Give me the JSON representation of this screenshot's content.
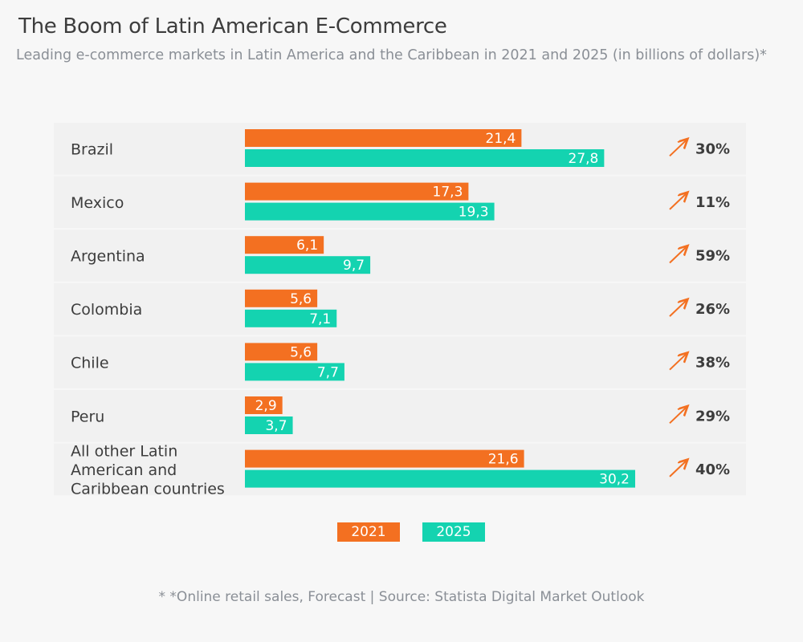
{
  "title": "The Boom of Latin American E-Commerce",
  "subtitle": "Leading e-commerce markets in Latin America and the Caribbean in 2021 and 2025 (in billions of dollars)*",
  "footnote": "* *Online retail sales, Forecast | Source: Statista Digital Market Outlook",
  "colors": {
    "y2021": "#f37021",
    "y2025": "#14d3b0",
    "arrow": "#f37021"
  },
  "chart_data": {
    "type": "bar",
    "orientation": "horizontal",
    "categories": [
      "Brazil",
      "Mexico",
      "Argentina",
      "Colombia",
      "Chile",
      "Peru",
      "All other Latin American and Caribbean countries"
    ],
    "category_display_lines": [
      [
        "Brazil"
      ],
      [
        "Mexico"
      ],
      [
        "Argentina"
      ],
      [
        "Colombia"
      ],
      [
        "Chile"
      ],
      [
        "Peru"
      ],
      [
        "All other Latin",
        "American and",
        "Caribbean countries"
      ]
    ],
    "series": [
      {
        "name": "2021",
        "values": [
          21.4,
          17.3,
          6.1,
          5.6,
          5.6,
          2.9,
          21.6
        ],
        "labels": [
          "21,4",
          "17,3",
          "6,1",
          "5,6",
          "5,6",
          "2,9",
          "21,6"
        ]
      },
      {
        "name": "2025",
        "values": [
          27.8,
          19.3,
          9.7,
          7.1,
          7.7,
          3.7,
          30.2
        ],
        "labels": [
          "27,8",
          "19,3",
          "9,7",
          "7,1",
          "7,7",
          "3,7",
          "30,2"
        ]
      }
    ],
    "growth": [
      "30%",
      "11%",
      "59%",
      "26%",
      "38%",
      "29%",
      "40%"
    ],
    "xlim": [
      0,
      30.2
    ],
    "legend_position": "bottom-center",
    "grid": false
  }
}
